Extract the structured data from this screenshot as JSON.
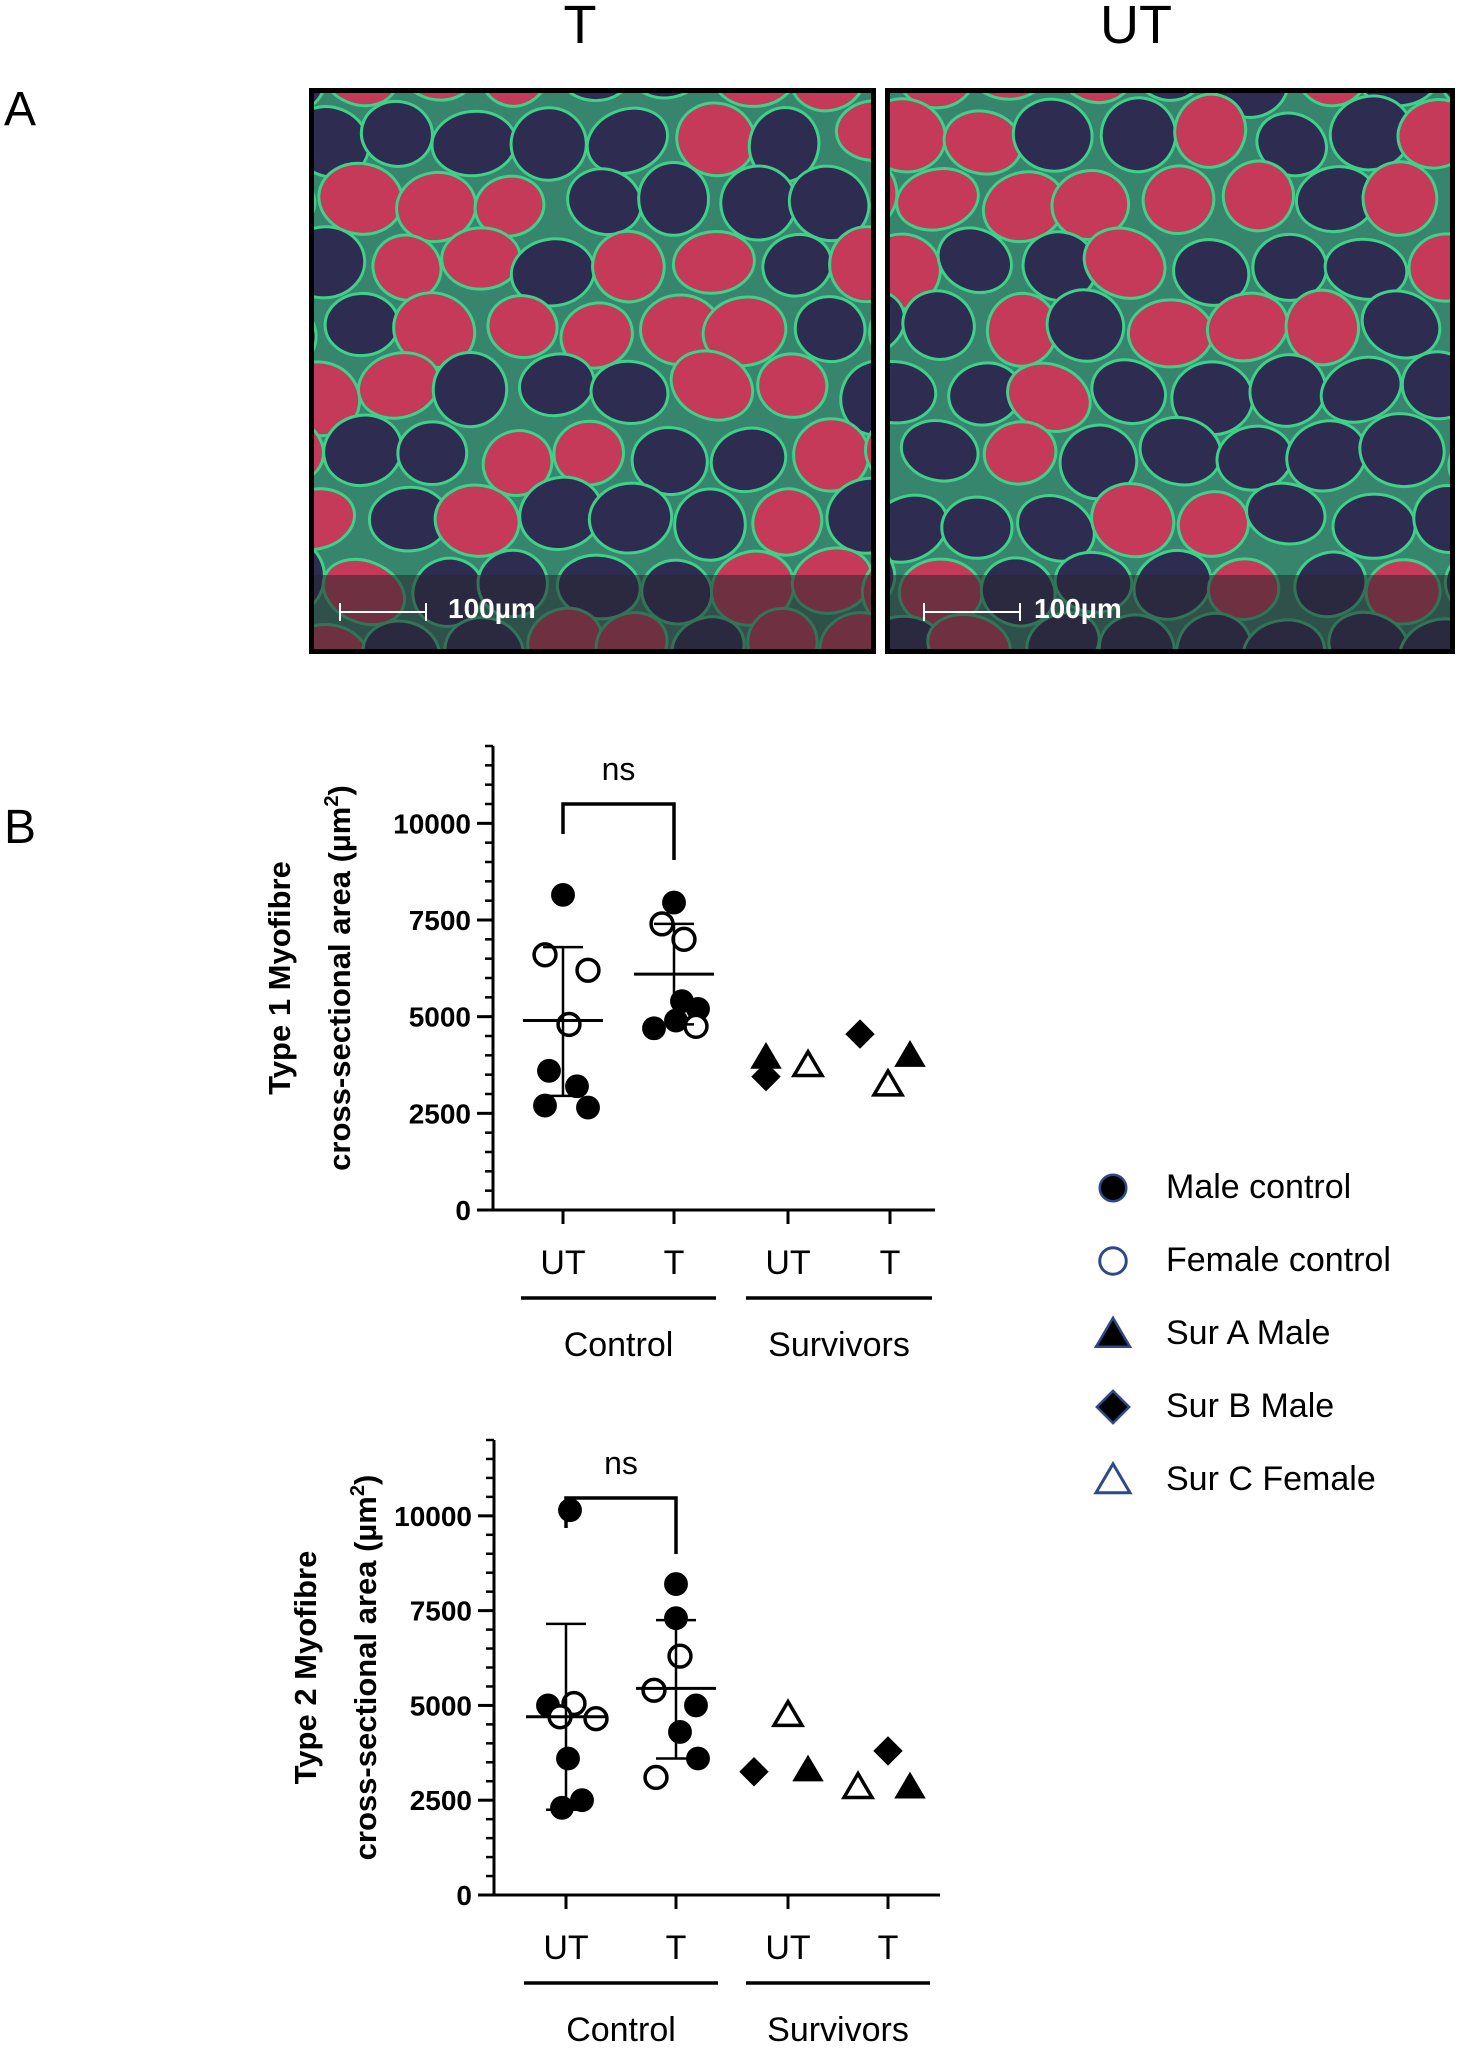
{
  "panel_a": {
    "letter": "A",
    "col_left": "T",
    "col_right": "UT",
    "scale_left": "100µm",
    "scale_right": "100µm",
    "colors": {
      "type1_fibre": "#c53a58",
      "type2_fibre": "#2f2c52",
      "membrane": "#3fd08a"
    }
  },
  "panel_b": {
    "letter": "B"
  },
  "legend": [
    {
      "label": "Male control",
      "marker": "circle-filled"
    },
    {
      "label": "Female control",
      "marker": "circle-open"
    },
    {
      "label": "Sur A Male",
      "marker": "triangle-filled"
    },
    {
      "label": "Sur B Male",
      "marker": "diamond-filled"
    },
    {
      "label": "Sur C Female",
      "marker": "triangle-open"
    }
  ],
  "chart_data": [
    {
      "type": "scatter",
      "ylabel_line1": "Type 1 Myofibre",
      "ylabel_line2": "cross-sectional area (µm",
      "ylabel_sup": "2",
      "ylabel_end": ")",
      "ylim": [
        0,
        12000
      ],
      "yticks": [
        0,
        2500,
        5000,
        7500,
        10000
      ],
      "ytick_labels": [
        "0",
        "2500",
        "5000",
        "7500",
        "10000"
      ],
      "categories": [
        "UT",
        "T",
        "UT",
        "T"
      ],
      "groups": [
        "Control",
        "Survivors"
      ],
      "significance": "ns",
      "summary": [
        {
          "cat": 0,
          "mean": 4900,
          "sd_low": 2950,
          "sd_high": 6800
        },
        {
          "cat": 1,
          "mean": 6100,
          "sd_low": 4800,
          "sd_high": 7400
        }
      ],
      "points": [
        {
          "cat": 0,
          "dx": 0,
          "y": 8150,
          "marker": "circle-filled"
        },
        {
          "cat": 0,
          "dx": -18,
          "y": 6600,
          "marker": "circle-open"
        },
        {
          "cat": 0,
          "dx": 25,
          "y": 6200,
          "marker": "circle-open"
        },
        {
          "cat": 0,
          "dx": 6,
          "y": 4800,
          "marker": "circle-open"
        },
        {
          "cat": 0,
          "dx": -14,
          "y": 3600,
          "marker": "circle-filled"
        },
        {
          "cat": 0,
          "dx": -18,
          "y": 2700,
          "marker": "circle-filled"
        },
        {
          "cat": 0,
          "dx": 14,
          "y": 3200,
          "marker": "circle-filled"
        },
        {
          "cat": 0,
          "dx": 25,
          "y": 2650,
          "marker": "circle-filled"
        },
        {
          "cat": 1,
          "dx": 0,
          "y": 7950,
          "marker": "circle-filled"
        },
        {
          "cat": 1,
          "dx": -12,
          "y": 7400,
          "marker": "circle-open"
        },
        {
          "cat": 1,
          "dx": 10,
          "y": 7000,
          "marker": "circle-open"
        },
        {
          "cat": 1,
          "dx": 8,
          "y": 5400,
          "marker": "circle-filled"
        },
        {
          "cat": 1,
          "dx": 24,
          "y": 5200,
          "marker": "circle-filled"
        },
        {
          "cat": 1,
          "dx": -20,
          "y": 4700,
          "marker": "circle-filled"
        },
        {
          "cat": 1,
          "dx": 2,
          "y": 4900,
          "marker": "circle-filled"
        },
        {
          "cat": 1,
          "dx": 22,
          "y": 4750,
          "marker": "circle-open"
        },
        {
          "cat": 2,
          "dx": -22,
          "y": 3950,
          "marker": "triangle-filled"
        },
        {
          "cat": 2,
          "dx": -22,
          "y": 3450,
          "marker": "diamond-filled"
        },
        {
          "cat": 2,
          "dx": 20,
          "y": 3750,
          "marker": "triangle-open"
        },
        {
          "cat": 3,
          "dx": -30,
          "y": 4550,
          "marker": "diamond-filled"
        },
        {
          "cat": 3,
          "dx": 20,
          "y": 4000,
          "marker": "triangle-filled"
        },
        {
          "cat": 3,
          "dx": -2,
          "y": 3250,
          "marker": "triangle-open"
        }
      ]
    },
    {
      "type": "scatter",
      "ylabel_line1": "Type 2 Myofibre",
      "ylabel_line2": "cross-sectional area (µm",
      "ylabel_sup": "2",
      "ylabel_end": ")",
      "ylim": [
        0,
        12000
      ],
      "yticks": [
        0,
        2500,
        5000,
        7500,
        10000
      ],
      "ytick_labels": [
        "0",
        "2500",
        "5000",
        "7500",
        "10000"
      ],
      "categories": [
        "UT",
        "T",
        "UT",
        "T"
      ],
      "groups": [
        "Control",
        "Survivors"
      ],
      "significance": "ns",
      "summary": [
        {
          "cat": 0,
          "mean": 4700,
          "sd_low": 2250,
          "sd_high": 7150
        },
        {
          "cat": 1,
          "mean": 5450,
          "sd_low": 3600,
          "sd_high": 7250
        }
      ],
      "points": [
        {
          "cat": 0,
          "dx": 4,
          "y": 10150,
          "marker": "circle-filled"
        },
        {
          "cat": 0,
          "dx": -18,
          "y": 5000,
          "marker": "circle-filled"
        },
        {
          "cat": 0,
          "dx": 8,
          "y": 5050,
          "marker": "circle-open"
        },
        {
          "cat": 0,
          "dx": -6,
          "y": 4700,
          "marker": "circle-open"
        },
        {
          "cat": 0,
          "dx": 30,
          "y": 4650,
          "marker": "circle-open"
        },
        {
          "cat": 0,
          "dx": 2,
          "y": 3600,
          "marker": "circle-filled"
        },
        {
          "cat": 0,
          "dx": -4,
          "y": 2300,
          "marker": "circle-filled"
        },
        {
          "cat": 0,
          "dx": 16,
          "y": 2500,
          "marker": "circle-filled"
        },
        {
          "cat": 1,
          "dx": 0,
          "y": 8200,
          "marker": "circle-filled"
        },
        {
          "cat": 1,
          "dx": 0,
          "y": 7300,
          "marker": "circle-filled"
        },
        {
          "cat": 1,
          "dx": 4,
          "y": 6300,
          "marker": "circle-open"
        },
        {
          "cat": 1,
          "dx": -22,
          "y": 5400,
          "marker": "circle-open"
        },
        {
          "cat": 1,
          "dx": 20,
          "y": 5000,
          "marker": "circle-filled"
        },
        {
          "cat": 1,
          "dx": 4,
          "y": 4300,
          "marker": "circle-filled"
        },
        {
          "cat": 1,
          "dx": -20,
          "y": 3100,
          "marker": "circle-open"
        },
        {
          "cat": 1,
          "dx": 22,
          "y": 3600,
          "marker": "circle-filled"
        },
        {
          "cat": 2,
          "dx": 0,
          "y": 4750,
          "marker": "triangle-open"
        },
        {
          "cat": 2,
          "dx": -34,
          "y": 3250,
          "marker": "diamond-filled"
        },
        {
          "cat": 2,
          "dx": 20,
          "y": 3300,
          "marker": "triangle-filled"
        },
        {
          "cat": 3,
          "dx": -30,
          "y": 2850,
          "marker": "triangle-open"
        },
        {
          "cat": 3,
          "dx": 0,
          "y": 3800,
          "marker": "diamond-filled"
        },
        {
          "cat": 3,
          "dx": 22,
          "y": 2850,
          "marker": "triangle-filled"
        }
      ]
    }
  ]
}
